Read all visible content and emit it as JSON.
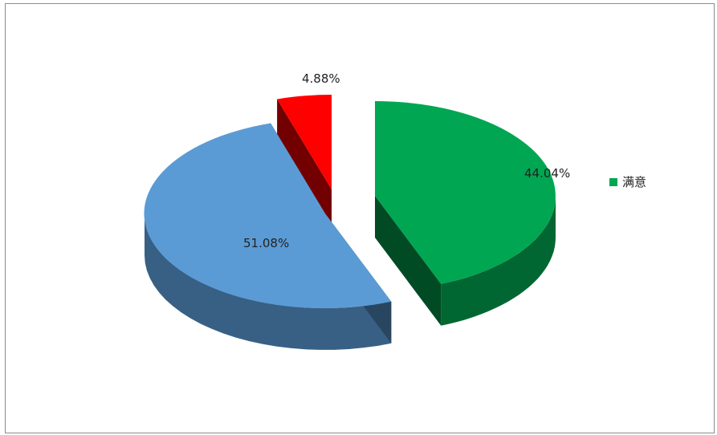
{
  "chart_data": {
    "type": "pie",
    "title": "",
    "slices": [
      {
        "label": "满意",
        "value": 44.04,
        "value_label": "44.04%",
        "color": "#00a651"
      },
      {
        "label": "",
        "value": 51.08,
        "value_label": "51.08%",
        "color": "#5b9bd5"
      },
      {
        "label": "",
        "value": 4.88,
        "value_label": "4.88%",
        "color": "#ff0000"
      }
    ],
    "legend_position": "right",
    "legend_entries": [
      "满意"
    ]
  }
}
